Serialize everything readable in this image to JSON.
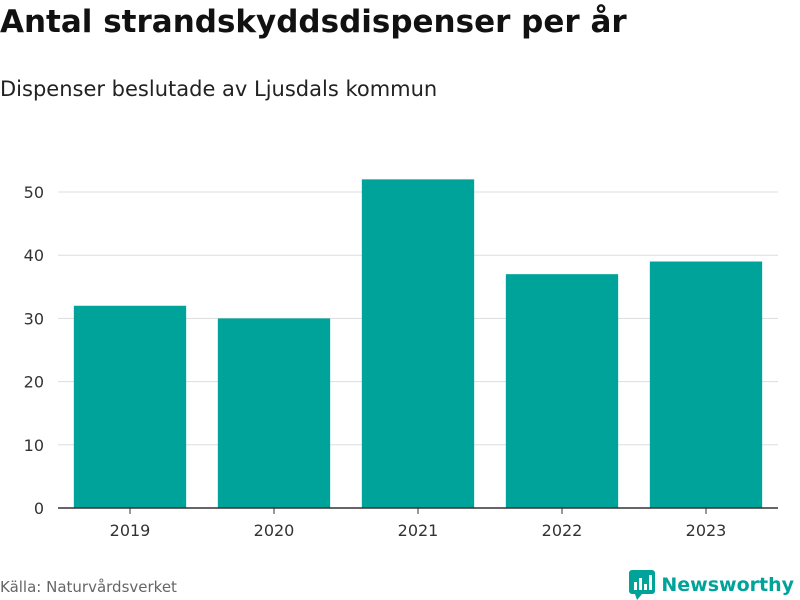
{
  "header": {
    "title": "Antal strandskyddsdispenser per år",
    "subtitle": "Dispenser beslutade av Ljusdals kommun"
  },
  "footer": {
    "source": "Källa: Naturvårdsverket",
    "brand": "Newsworthy"
  },
  "colors": {
    "bar": "#00a39a",
    "grid": "#dddddd",
    "axis": "#333333",
    "brand": "#00a39a"
  },
  "chart_data": {
    "type": "bar",
    "title": "Antal strandskyddsdispenser per år",
    "subtitle": "Dispenser beslutade av Ljusdals kommun",
    "xlabel": "",
    "ylabel": "",
    "categories": [
      "2019",
      "2020",
      "2021",
      "2022",
      "2023"
    ],
    "values": [
      32,
      30,
      52,
      37,
      39
    ],
    "ylim": [
      0,
      55
    ],
    "yticks": [
      0,
      10,
      20,
      30,
      40,
      50
    ],
    "grid": true,
    "legend": "none"
  }
}
